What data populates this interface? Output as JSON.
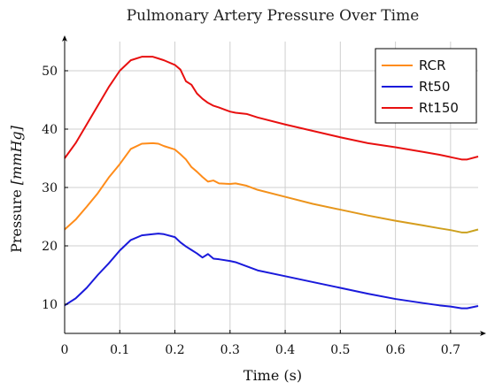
{
  "chart_data": {
    "type": "line",
    "title": "Pulmonary Artery Pressure Over Time",
    "xlabel": "Time (s)",
    "ylabel_main": "Pressure ",
    "ylabel_unit": "[mmHg]",
    "xlim": [
      0,
      0.75
    ],
    "ylim": [
      5,
      55
    ],
    "xticks": [
      0,
      0.1,
      0.2,
      0.3,
      0.4,
      0.5,
      0.6,
      0.7
    ],
    "xtick_labels": [
      "0",
      "0.1",
      "0.2",
      "0.3",
      "0.4",
      "0.5",
      "0.6",
      "0.7"
    ],
    "yticks": [
      10,
      20,
      30,
      40,
      50
    ],
    "ytick_labels": [
      "10",
      "20",
      "30",
      "40",
      "50"
    ],
    "grid": true,
    "legend_position": "top-right",
    "x": [
      0,
      0.02,
      0.04,
      0.06,
      0.08,
      0.1,
      0.12,
      0.14,
      0.16,
      0.17,
      0.18,
      0.2,
      0.21,
      0.22,
      0.23,
      0.24,
      0.25,
      0.26,
      0.27,
      0.28,
      0.3,
      0.31,
      0.33,
      0.35,
      0.4,
      0.45,
      0.5,
      0.55,
      0.6,
      0.65,
      0.68,
      0.7,
      0.72,
      0.73,
      0.75
    ],
    "series": [
      {
        "name": "RCR",
        "color": "#ff8c1a",
        "end_color": "#c8a21e",
        "values": [
          22.8,
          24.5,
          26.7,
          29.0,
          31.7,
          34.0,
          36.6,
          37.5,
          37.6,
          37.5,
          37.1,
          36.5,
          35.7,
          34.8,
          33.5,
          32.7,
          31.8,
          31.0,
          31.2,
          30.7,
          30.6,
          30.7,
          30.3,
          29.6,
          28.4,
          27.2,
          26.2,
          25.2,
          24.3,
          23.5,
          23.0,
          22.7,
          22.3,
          22.3,
          22.8
        ]
      },
      {
        "name": "Rt50",
        "color": "#1a1adb",
        "end_color": "#1a1adb",
        "values": [
          9.8,
          11.0,
          12.8,
          15.0,
          17.0,
          19.2,
          21.0,
          21.8,
          22.0,
          22.1,
          22.0,
          21.5,
          20.6,
          19.9,
          19.3,
          18.7,
          18.0,
          18.6,
          17.8,
          17.7,
          17.4,
          17.2,
          16.5,
          15.8,
          14.8,
          13.8,
          12.8,
          11.8,
          10.9,
          10.2,
          9.8,
          9.6,
          9.3,
          9.3,
          9.7
        ]
      },
      {
        "name": "Rt150",
        "color": "#e81010",
        "end_color": "#e81010",
        "values": [
          35.0,
          37.6,
          40.8,
          44.0,
          47.2,
          50.0,
          51.8,
          52.4,
          52.4,
          52.1,
          51.8,
          51.0,
          50.2,
          48.2,
          47.6,
          46.1,
          45.2,
          44.5,
          44.0,
          43.7,
          43.0,
          42.8,
          42.6,
          42.0,
          40.8,
          39.7,
          38.6,
          37.6,
          36.9,
          36.1,
          35.6,
          35.2,
          34.8,
          34.8,
          35.3
        ]
      }
    ]
  }
}
